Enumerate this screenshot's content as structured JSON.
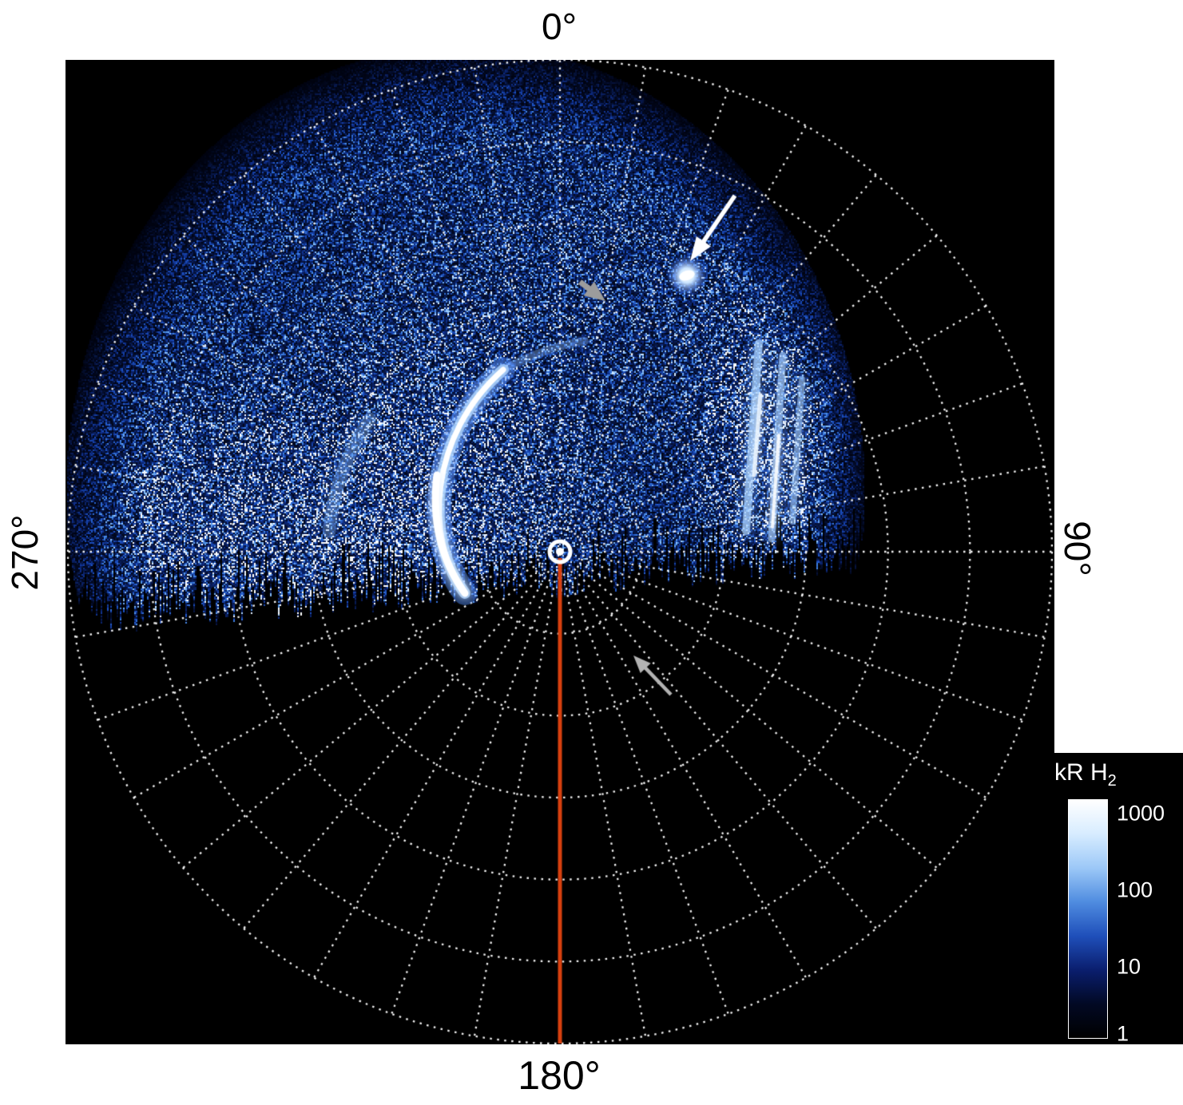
{
  "figure": {
    "angle_labels": {
      "top": "0°",
      "right": "90°",
      "bottom": "180°",
      "left": "270°"
    },
    "colorbar": {
      "title": "kR H",
      "title_sub": "2",
      "ticks": [
        "1000",
        "100",
        "10",
        "1"
      ],
      "palette": [
        "#ffffff",
        "#d7ecff",
        "#9cc8f7",
        "#4f8ce0",
        "#1f4fba",
        "#0a1e6e",
        "#020924",
        "#000000"
      ]
    },
    "colors": {
      "background": "#ffffff",
      "plot_bg": "#000000",
      "grid": "#ffffff",
      "meridian_line": "#d8400f",
      "arrow_white": "#ffffff",
      "arrow_gray": "#9c9c9c",
      "arrow_gray_light": "#b2b2b2"
    }
  },
  "chart_data": {
    "type": "heatmap",
    "projection": "polar",
    "description": "False-color polar map of auroral H2 UV emission (log color scale in kR). Noisy blue emission fills the sunlit/observed sector from ~270° through 0° to ~95° longitude; the anti-observed sector is black. A bright white main auroral arc lies left of the pole, a bright emission band near 80°-90°, a compact bright spot near 30° longitude marked by a white arrow, and faint diffuse arcs marked by gray arrows. A red meridian line runs from the pole toward 180°.",
    "angular_tick_labels": [
      "0°",
      "90°",
      "180°",
      "270°"
    ],
    "angular_gridline_step_deg": 10,
    "radial_gridlines": 6,
    "grid_style": "dotted",
    "colorbar": {
      "label": "kR H2",
      "scale": "log",
      "tick_values": [
        1000,
        100,
        10,
        1
      ],
      "range": [
        1,
        1000
      ]
    },
    "meridian_line": {
      "color": "#d8400f",
      "from": [
        619,
        624
      ],
      "to": [
        619,
        1232
      ],
      "width": 5
    },
    "pole_marker": {
      "center": [
        619,
        616
      ],
      "ring_radius": 13,
      "dot_radius": 5,
      "color": "#ffffff"
    },
    "bright_features": {
      "main_arc_bezier": [
        [
          548,
          388
        ],
        [
          455,
          470
        ],
        [
          448,
          600
        ],
        [
          500,
          668
        ]
      ],
      "arc_extension": [
        [
          548,
          388
        ],
        [
          600,
          360
        ],
        [
          650,
          352
        ]
      ],
      "faint_arc": {
        "r": 290,
        "a0": -85,
        "a1": -55
      },
      "spot": [
        778,
        270
      ],
      "band_streaks": [
        [
          [
            868,
            355
          ],
          [
            852,
            590
          ]
        ],
        [
          [
            898,
            370
          ],
          [
            884,
            600
          ]
        ],
        [
          [
            922,
            400
          ],
          [
            910,
            578
          ]
        ]
      ]
    },
    "annotations": [
      {
        "id": "arrow-white",
        "type": "arrow",
        "color": "#ffffff",
        "tail": [
          838,
          170
        ],
        "tip": [
          782,
          252
        ],
        "line_width": 5.5,
        "head_len": 30,
        "head_halfwidth": 11
      },
      {
        "id": "arrowhead-gray-upper",
        "type": "arrow",
        "color": "#9c9c9c",
        "tail": [
          644,
          278
        ],
        "tip": [
          676,
          302
        ],
        "line_width": 7,
        "head_len": 26,
        "head_halfwidth": 11
      },
      {
        "id": "arrow-gray-lower",
        "type": "arrow",
        "color": "#b2b2b2",
        "tail": [
          758,
          795
        ],
        "tip": [
          711,
          746
        ],
        "line_width": 4.5,
        "head_len": 22,
        "head_halfwidth": 9
      }
    ]
  }
}
